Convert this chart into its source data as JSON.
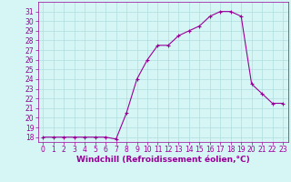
{
  "x": [
    0,
    1,
    2,
    3,
    4,
    5,
    6,
    7,
    8,
    9,
    10,
    11,
    12,
    13,
    14,
    15,
    16,
    17,
    18,
    19,
    20,
    21,
    22,
    23
  ],
  "y": [
    18,
    18,
    18,
    18,
    18,
    18,
    18,
    17.8,
    20.5,
    24,
    26,
    27.5,
    27.5,
    28.5,
    29,
    29.5,
    30.5,
    31,
    31,
    30.5,
    23.5,
    22.5,
    21.5,
    21.5
  ],
  "line_color": "#990099",
  "marker": "+",
  "marker_size": 3,
  "bg_color": "#d6f5f5",
  "grid_color": "#b0dede",
  "xlabel": "Windchill (Refroidissement éolien,°C)",
  "xlabel_color": "#990099",
  "xlabel_fontsize": 6.5,
  "tick_color": "#990099",
  "tick_fontsize": 5.5,
  "ylim": [
    17.5,
    32
  ],
  "xlim": [
    -0.5,
    23.5
  ],
  "yticks": [
    18,
    19,
    20,
    21,
    22,
    23,
    24,
    25,
    26,
    27,
    28,
    29,
    30,
    31
  ],
  "xticks": [
    0,
    1,
    2,
    3,
    4,
    5,
    6,
    7,
    8,
    9,
    10,
    11,
    12,
    13,
    14,
    15,
    16,
    17,
    18,
    19,
    20,
    21,
    22,
    23
  ]
}
